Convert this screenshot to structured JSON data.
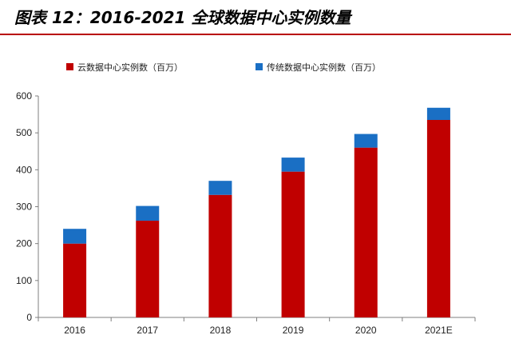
{
  "header": {
    "title": "图表 12：2016-2021 全球数据中心实例数量"
  },
  "chart_data": {
    "type": "bar",
    "stacked": true,
    "title": "",
    "xlabel": "",
    "ylabel": "",
    "categories": [
      "2016",
      "2017",
      "2018",
      "2019",
      "2020",
      "2021E"
    ],
    "series": [
      {
        "name": "云数据中心实例数（百万）",
        "color": "#c00000",
        "values": [
          200,
          262,
          332,
          395,
          460,
          535
        ]
      },
      {
        "name": "传统数据中心实例数（百万）",
        "color": "#1a6fc4",
        "values": [
          40,
          40,
          38,
          38,
          37,
          33
        ]
      }
    ],
    "ylim": [
      0,
      600
    ],
    "yticks": [
      0,
      100,
      200,
      300,
      400,
      500,
      600
    ],
    "grid": false,
    "legend_position": "top-center"
  }
}
